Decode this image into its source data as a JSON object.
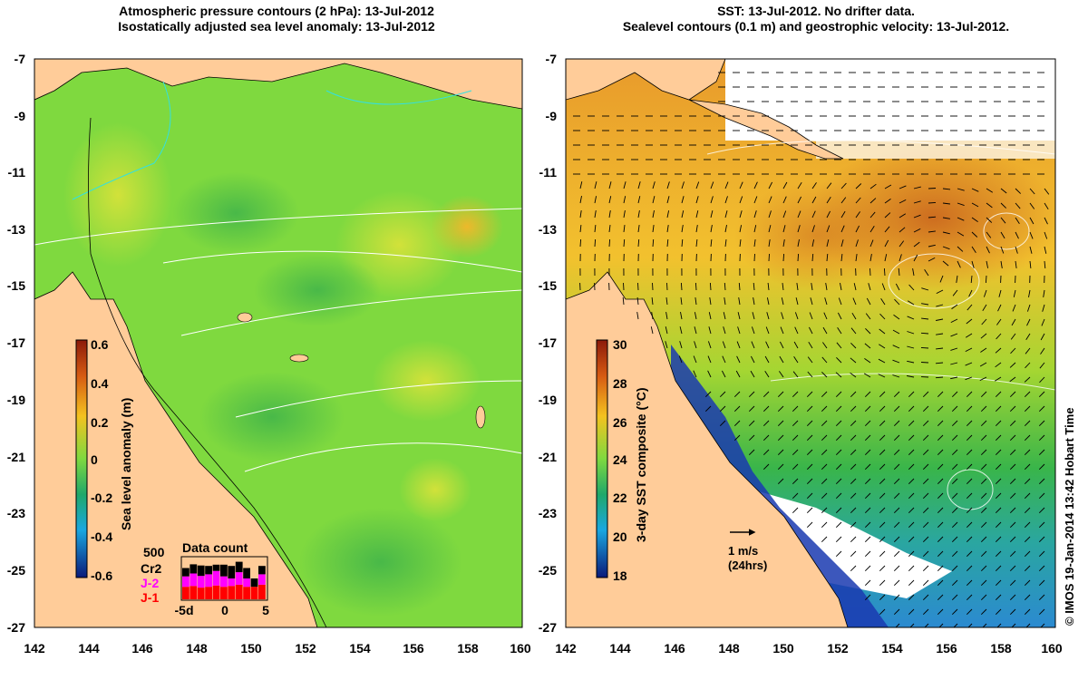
{
  "left_panel": {
    "title_line1": "Atmospheric pressure contours (2 hPa): 13-Jul-2012",
    "title_line2": "Isostatically adjusted sea level anomaly: 13-Jul-2012",
    "x_ticks": [
      "142",
      "144",
      "146",
      "148",
      "150",
      "152",
      "154",
      "156",
      "158",
      "160"
    ],
    "y_ticks": [
      "-7",
      "-9",
      "-11",
      "-13",
      "-15",
      "-17",
      "-19",
      "-21",
      "-23",
      "-25",
      "-27"
    ],
    "colorbar": {
      "label": "Sea level anomaly (m)",
      "ticks": [
        "0.6",
        "0.4",
        "0.2",
        "0",
        "-0.2",
        "-0.4",
        "-0.6"
      ],
      "min": -0.6,
      "max": 0.6
    },
    "data_count": {
      "title": "Data count",
      "scale_label": "500",
      "legend": [
        {
          "label": "Cr2",
          "color": "#000000"
        },
        {
          "label": "J-2",
          "color": "#ff00ff"
        },
        {
          "label": "J-1",
          "color": "#ff0000"
        }
      ],
      "axis_ticks": [
        "-5d",
        "0",
        "5"
      ],
      "bars": [
        {
          "j1": 0.3,
          "j2": 0.25,
          "cr2": 0.2
        },
        {
          "j1": 0.32,
          "j2": 0.3,
          "cr2": 0.22
        },
        {
          "j1": 0.28,
          "j2": 0.28,
          "cr2": 0.25
        },
        {
          "j1": 0.3,
          "j2": 0.3,
          "cr2": 0.2
        },
        {
          "j1": 0.33,
          "j2": 0.35,
          "cr2": 0.15
        },
        {
          "j1": 0.3,
          "j2": 0.25,
          "cr2": 0.28
        },
        {
          "j1": 0.32,
          "j2": 0.18,
          "cr2": 0.3
        },
        {
          "j1": 0.35,
          "j2": 0.3,
          "cr2": 0.25
        },
        {
          "j1": 0.3,
          "j2": 0.2,
          "cr2": 0.25
        },
        {
          "j1": 0.3,
          "j2": 0.0,
          "cr2": 0.2
        },
        {
          "j1": 0.35,
          "j2": 0.25,
          "cr2": 0.2
        }
      ]
    }
  },
  "right_panel": {
    "title_line1": "SST: 13-Jul-2012. No drifter data.",
    "title_line2": "Sealevel contours (0.1 m) and geostrophic velocity: 13-Jul-2012.",
    "x_ticks": [
      "142",
      "144",
      "146",
      "148",
      "150",
      "152",
      "154",
      "156",
      "158",
      "160"
    ],
    "y_ticks": [
      "-7",
      "-9",
      "-11",
      "-13",
      "-15",
      "-17",
      "-19",
      "-21",
      "-23",
      "-25",
      "-27"
    ],
    "colorbar": {
      "label": "3-day SST composite (°C)",
      "ticks": [
        "30",
        "28",
        "26",
        "24",
        "22",
        "20",
        "18"
      ],
      "min": 18,
      "max": 30
    },
    "velocity_scale": {
      "label_line1": "1 m/s",
      "label_line2": "(24hrs)"
    }
  },
  "credit": "© IMOS 19-Jan-2014 13:42 Hobart Time",
  "colors": {
    "land": "#ffcc99",
    "sla_background": "#7fd93f",
    "sst_warm": "#e89a2c",
    "sst_cool": "#35b0d6"
  }
}
